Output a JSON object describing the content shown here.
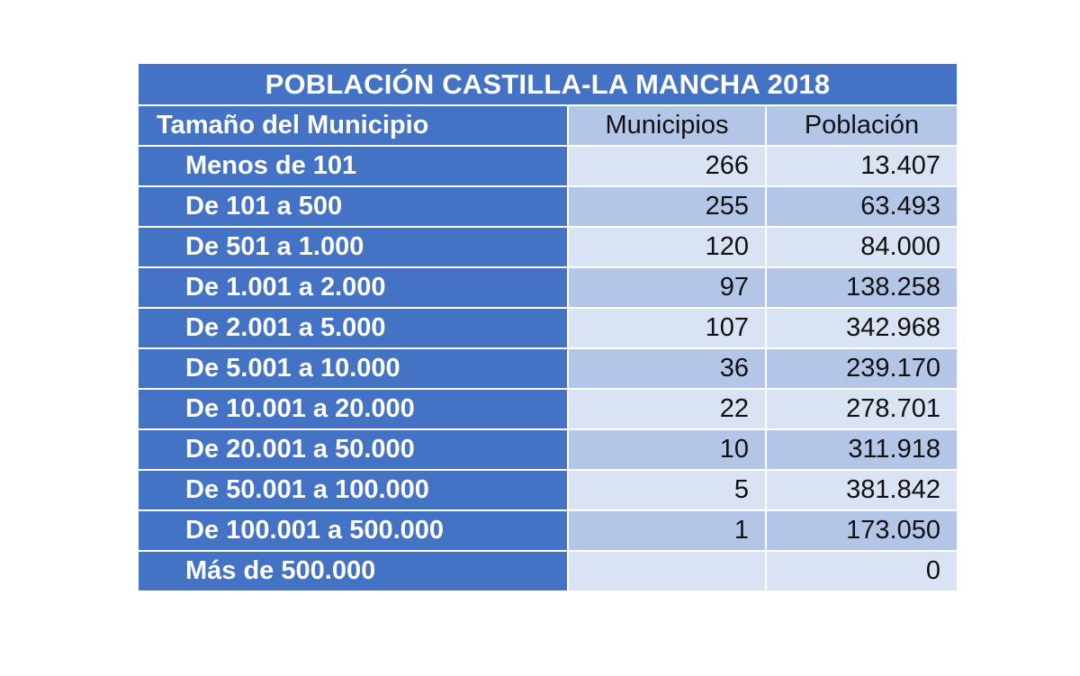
{
  "table": {
    "title": "POBLACIÓN CASTILLA-LA MANCHA 2018",
    "headers": [
      "Tamaño del Municipio",
      "Municipios",
      "Población"
    ],
    "rows": [
      {
        "size": "Menos de 101",
        "municipios": "266",
        "poblacion": "13.407"
      },
      {
        "size": "De 101 a 500",
        "municipios": "255",
        "poblacion": "63.493"
      },
      {
        "size": "De 501 a 1.000",
        "municipios": "120",
        "poblacion": "84.000"
      },
      {
        "size": "De 1.001 a 2.000",
        "municipios": "97",
        "poblacion": "138.258"
      },
      {
        "size": "De 2.001 a 5.000",
        "municipios": "107",
        "poblacion": "342.968"
      },
      {
        "size": "De 5.001 a 10.000",
        "municipios": "36",
        "poblacion": "239.170"
      },
      {
        "size": "De 10.001 a 20.000",
        "municipios": "22",
        "poblacion": "278.701"
      },
      {
        "size": "De 20.001 a 50.000",
        "municipios": "10",
        "poblacion": "311.918"
      },
      {
        "size": "De 50.001 a 100.000",
        "municipios": "5",
        "poblacion": "381.842"
      },
      {
        "size": "De 100.001 a 500.000",
        "municipios": "1",
        "poblacion": "173.050"
      },
      {
        "size": "Más de 500.000",
        "municipios": "",
        "poblacion": "0"
      }
    ]
  },
  "colors": {
    "header_blue": "#4472c4",
    "light_blue": "#dae3f3",
    "mid_blue": "#b4c6e7"
  }
}
